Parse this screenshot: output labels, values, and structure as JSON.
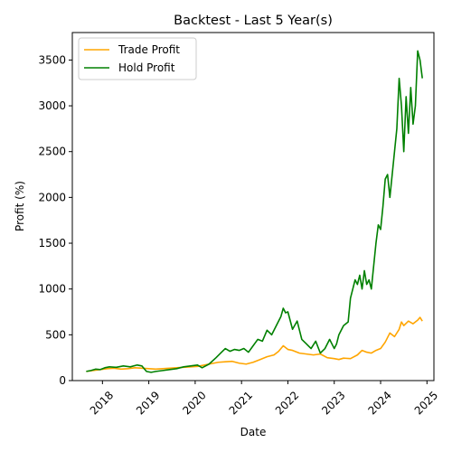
{
  "chart_data": {
    "type": "line",
    "title": "Backtest - Last 5 Year(s)",
    "xlabel": "Date",
    "ylabel": "Profit (%)",
    "xlim": [
      2017.35,
      2025.15
    ],
    "ylim": [
      0,
      3800
    ],
    "xticks": [
      2018,
      2019,
      2020,
      2021,
      2022,
      2023,
      2024,
      2025
    ],
    "yticks": [
      0,
      500,
      1000,
      1500,
      2000,
      2500,
      3000,
      3500
    ],
    "grid": false,
    "legend_placement": "top-left",
    "series": [
      {
        "name": "Trade Profit",
        "color": "#ffa500",
        "x": [
          2017.65,
          2017.8,
          2017.95,
          2018.1,
          2018.25,
          2018.4,
          2018.55,
          2018.7,
          2018.85,
          2019.0,
          2019.15,
          2019.3,
          2019.45,
          2019.6,
          2019.75,
          2019.9,
          2020.05,
          2020.2,
          2020.35,
          2020.5,
          2020.65,
          2020.8,
          2020.95,
          2021.1,
          2021.25,
          2021.4,
          2021.55,
          2021.7,
          2021.8,
          2021.9,
          2022.0,
          2022.1,
          2022.25,
          2022.4,
          2022.55,
          2022.7,
          2022.85,
          2023.0,
          2023.1,
          2023.2,
          2023.35,
          2023.5,
          2023.6,
          2023.7,
          2023.8,
          2023.9,
          2024.0,
          2024.1,
          2024.2,
          2024.3,
          2024.4,
          2024.45,
          2024.5,
          2024.6,
          2024.7,
          2024.8,
          2024.85,
          2024.9
        ],
        "y": [
          100,
          110,
          120,
          130,
          135,
          125,
          130,
          140,
          135,
          130,
          125,
          130,
          135,
          140,
          145,
          150,
          155,
          170,
          185,
          200,
          205,
          210,
          190,
          180,
          200,
          230,
          260,
          280,
          320,
          380,
          340,
          330,
          300,
          290,
          280,
          290,
          250,
          240,
          230,
          245,
          240,
          280,
          330,
          310,
          300,
          330,
          350,
          420,
          520,
          480,
          560,
          640,
          600,
          650,
          620,
          660,
          690,
          650
        ]
      },
      {
        "name": "Hold Profit",
        "color": "#008000",
        "x": [
          2017.65,
          2017.75,
          2017.85,
          2017.95,
          2018.05,
          2018.15,
          2018.3,
          2018.45,
          2018.6,
          2018.75,
          2018.85,
          2018.95,
          2019.05,
          2019.15,
          2019.3,
          2019.45,
          2019.6,
          2019.75,
          2019.9,
          2020.05,
          2020.15,
          2020.3,
          2020.45,
          2020.55,
          2020.65,
          2020.75,
          2020.85,
          2020.95,
          2021.05,
          2021.15,
          2021.25,
          2021.35,
          2021.45,
          2021.55,
          2021.65,
          2021.75,
          2021.85,
          2021.9,
          2021.95,
          2022.0,
          2022.1,
          2022.2,
          2022.3,
          2022.4,
          2022.5,
          2022.6,
          2022.7,
          2022.8,
          2022.9,
          2023.0,
          2023.05,
          2023.1,
          2023.2,
          2023.3,
          2023.35,
          2023.4,
          2023.45,
          2023.5,
          2023.55,
          2023.6,
          2023.65,
          2023.7,
          2023.75,
          2023.8,
          2023.85,
          2023.9,
          2023.95,
          2024.0,
          2024.05,
          2024.1,
          2024.15,
          2024.2,
          2024.25,
          2024.3,
          2024.35,
          2024.4,
          2024.45,
          2024.5,
          2024.55,
          2024.6,
          2024.65,
          2024.7,
          2024.75,
          2024.8,
          2024.85,
          2024.9
        ],
        "y": [
          100,
          110,
          125,
          120,
          140,
          150,
          145,
          160,
          150,
          170,
          160,
          100,
          90,
          100,
          110,
          120,
          130,
          150,
          160,
          170,
          140,
          180,
          250,
          300,
          350,
          320,
          340,
          330,
          350,
          310,
          380,
          450,
          430,
          550,
          500,
          600,
          700,
          790,
          740,
          750,
          560,
          650,
          450,
          400,
          350,
          430,
          300,
          350,
          450,
          350,
          400,
          500,
          600,
          640,
          900,
          1000,
          1100,
          1050,
          1150,
          1000,
          1200,
          1050,
          1100,
          1000,
          1250,
          1500,
          1700,
          1650,
          1900,
          2200,
          2250,
          2000,
          2250,
          2500,
          2750,
          3300,
          3000,
          2500,
          3100,
          2700,
          3200,
          2800,
          3000,
          3600,
          3500,
          3300
        ]
      }
    ]
  }
}
